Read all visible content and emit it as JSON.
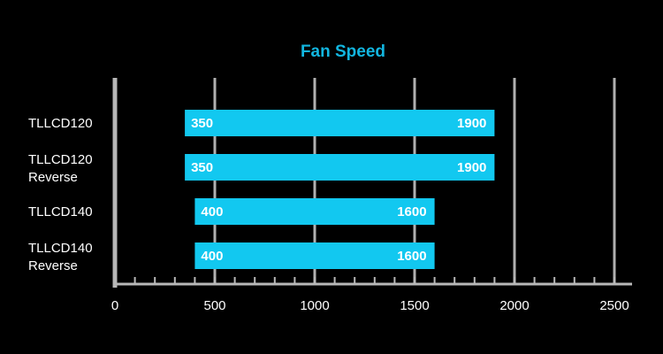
{
  "colors": {
    "background": "#000000",
    "bar": "#12c8f0",
    "title": "#12b6e0",
    "grid": "#b0b0b0",
    "axis": "#b8b8b8",
    "text": "#ffffff"
  },
  "chart_data": {
    "type": "bar",
    "orientation": "horizontal",
    "style": "floating-range",
    "title": "Fan Speed",
    "xlabel": "",
    "ylabel": "",
    "xlim": [
      0,
      2500
    ],
    "major_ticks": [
      0,
      500,
      1000,
      1500,
      2000,
      2500
    ],
    "minor_tick_step": 100,
    "grid": "vertical-major",
    "legend": "none",
    "categories": [
      {
        "lines": [
          "TLLCD120"
        ]
      },
      {
        "lines": [
          "TLLCD120",
          "Reverse"
        ]
      },
      {
        "lines": [
          "TLLCD140"
        ]
      },
      {
        "lines": [
          "TLLCD140",
          "Reverse"
        ]
      }
    ],
    "series": [
      {
        "ranges": [
          {
            "min": 350,
            "max": 1900
          },
          {
            "min": 350,
            "max": 1900
          },
          {
            "min": 400,
            "max": 1600
          },
          {
            "min": 400,
            "max": 1600
          }
        ]
      }
    ]
  }
}
